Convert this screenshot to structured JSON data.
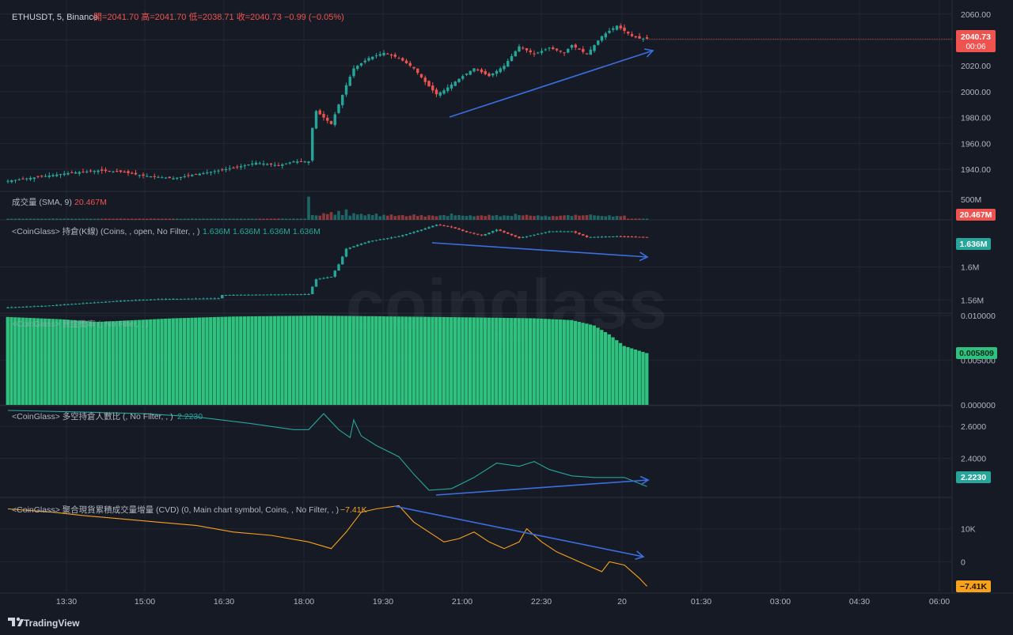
{
  "header": {
    "symbol": "ETHUSDT, 5, Binance",
    "ohlc": "開=2041.70 高=2041.70 低=2038.71 收=2040.73 −0.99 (−0.05%)"
  },
  "price_badge": {
    "price": "2040.73",
    "countdown": "00:06"
  },
  "panes": {
    "volume": {
      "title": "成交量 (SMA, 9)",
      "value": "20.467M",
      "badge": "20.467M",
      "top_tick": "500M"
    },
    "oi": {
      "title": "<CoinGlass> 持倉(K線) (Coins, , open, No Filter, , )",
      "values": "1.636M  1.636M  1.636M  1.636M",
      "badge": "1.636M"
    },
    "funding": {
      "title": "<CoinGlass> 資金費率 (, No Filter, , )",
      "badge": "0.005809"
    },
    "ls_ratio": {
      "title": "<CoinGlass> 多空持倉人數比 (, No Filter, , )",
      "value": "2.2230",
      "badge": "2.2230"
    },
    "cvd": {
      "title": "<CoinGlass> 聚合現貨累積成交量增量 (CVD) (0, Main chart symbol, Coins, , No Filter, , )",
      "value": "−7.41K",
      "badge": "−7.41K"
    }
  },
  "watermark": "coinglass",
  "footer": {
    "brand": "TradingView"
  },
  "colors": {
    "up": "#26a69a",
    "down": "#ef5350",
    "bg": "#161a25",
    "grid": "#232734",
    "funding": "#2ec27e",
    "ls": "#26a69a",
    "cvd": "#f7a21b",
    "arrow": "#3b6fe0"
  },
  "chart_data": [
    {
      "type": "candlestick",
      "title": "ETHUSDT, 5, Binance",
      "y_ticks": [
        "2060.00",
        "2040.00",
        "2020.00",
        "2000.00",
        "1980.00",
        "1960.00",
        "1940.00"
      ],
      "ylim": [
        1929,
        2066
      ],
      "x_ticks": [
        "13:30",
        "15:00",
        "16:30",
        "18:00",
        "19:30",
        "21:00",
        "22:30",
        "20",
        "01:30",
        "03:00",
        "04:30",
        "06:00"
      ],
      "close_path": [
        [
          0,
          1931
        ],
        [
          8,
          1934
        ],
        [
          16,
          1937
        ],
        [
          24,
          1939
        ],
        [
          30,
          1938
        ],
        [
          36,
          1935
        ],
        [
          44,
          1933
        ],
        [
          52,
          1937
        ],
        [
          60,
          1941
        ],
        [
          66,
          1945
        ],
        [
          72,
          1943
        ],
        [
          76,
          1946
        ],
        [
          80,
          1946
        ],
        [
          81,
          1972
        ],
        [
          82,
          1985
        ],
        [
          86,
          1975
        ],
        [
          88,
          1990
        ],
        [
          90,
          2005
        ],
        [
          92,
          2018
        ],
        [
          96,
          2026
        ],
        [
          100,
          2030
        ],
        [
          104,
          2026
        ],
        [
          108,
          2018
        ],
        [
          112,
          2004
        ],
        [
          114,
          1998
        ],
        [
          116,
          2001
        ],
        [
          120,
          2010
        ],
        [
          124,
          2018
        ],
        [
          128,
          2012
        ],
        [
          132,
          2020
        ],
        [
          136,
          2035
        ],
        [
          140,
          2029
        ],
        [
          144,
          2034
        ],
        [
          148,
          2030
        ],
        [
          150,
          2036
        ],
        [
          154,
          2029
        ],
        [
          158,
          2043
        ],
        [
          162,
          2051
        ],
        [
          164,
          2047
        ],
        [
          166,
          2043
        ],
        [
          168,
          2041
        ],
        [
          170,
          2041
        ]
      ],
      "last_price": 2040.73
    },
    {
      "type": "bar",
      "title": "成交量 (SMA, 9)",
      "y_ticks": [
        "500M"
      ],
      "ylim": [
        0,
        900
      ],
      "values": [
        36,
        40,
        38,
        42,
        35,
        38,
        41,
        37,
        40,
        39,
        36,
        38,
        42,
        40,
        37,
        39,
        41,
        38,
        36,
        40,
        38,
        42,
        39,
        37,
        41,
        38,
        40,
        39,
        36,
        40,
        42,
        38,
        37,
        41,
        39,
        40,
        38,
        36,
        42,
        40,
        39,
        37,
        41,
        38,
        40,
        39,
        36,
        40,
        38,
        42,
        39,
        37,
        41,
        38,
        40,
        39,
        38,
        40,
        37,
        41,
        39,
        38,
        40,
        36,
        42,
        39,
        38,
        40,
        37,
        41,
        39,
        38,
        42,
        40,
        39,
        37,
        41,
        38,
        40,
        39,
        780,
        160,
        150,
        140,
        220,
        190,
        260,
        170,
        300,
        160,
        350,
        140,
        220,
        180,
        200,
        150,
        190,
        160,
        210,
        120,
        170,
        140,
        180,
        130,
        150,
        160,
        120,
        140,
        180,
        130,
        160,
        110,
        150,
        140,
        120,
        150,
        160,
        130,
        210,
        150,
        160,
        140,
        130,
        150,
        120,
        140,
        150,
        130,
        170,
        140,
        160,
        120,
        150,
        140,
        130,
        200,
        160,
        150,
        170,
        140,
        130,
        150,
        120,
        140,
        110,
        130,
        120,
        140,
        150,
        160,
        130,
        170,
        140,
        150,
        160,
        180,
        150,
        140,
        130,
        120,
        150,
        110,
        130,
        120,
        140
      ],
      "last": 20.467
    },
    {
      "type": "candlestick",
      "title": "<CoinGlass> 持倉(K線) (Coins, , open, No Filter, , )",
      "y_ticks": [
        "1.636M",
        "1.6M",
        "1.56M"
      ],
      "ylim": [
        1.545,
        1.655
      ],
      "close_path": [
        [
          0,
          1.551
        ],
        [
          10,
          1.553
        ],
        [
          20,
          1.556
        ],
        [
          30,
          1.559
        ],
        [
          40,
          1.561
        ],
        [
          56,
          1.562
        ],
        [
          57,
          1.566
        ],
        [
          80,
          1.567
        ],
        [
          82,
          1.585
        ],
        [
          86,
          1.588
        ],
        [
          88,
          1.603
        ],
        [
          90,
          1.622
        ],
        [
          96,
          1.631
        ],
        [
          104,
          1.637
        ],
        [
          110,
          1.645
        ],
        [
          114,
          1.651
        ],
        [
          118,
          1.648
        ],
        [
          122,
          1.642
        ],
        [
          126,
          1.638
        ],
        [
          130,
          1.645
        ],
        [
          136,
          1.635
        ],
        [
          140,
          1.639
        ],
        [
          144,
          1.643
        ],
        [
          150,
          1.643
        ],
        [
          154,
          1.636
        ],
        [
          162,
          1.637
        ],
        [
          170,
          1.636
        ]
      ],
      "last": 1.636
    },
    {
      "type": "bar",
      "title": "<CoinGlass> 資金費率 (, No Filter, , )",
      "y_ticks": [
        "0.010000",
        "0.005000",
        "0.000000"
      ],
      "ylim": [
        0,
        0.0101
      ],
      "segments": [
        [
          0,
          0.00985
        ],
        [
          14,
          0.0096
        ],
        [
          24,
          0.0093
        ],
        [
          34,
          0.0095
        ],
        [
          44,
          0.0097
        ],
        [
          60,
          0.0099
        ],
        [
          82,
          0.01
        ],
        [
          104,
          0.0099
        ],
        [
          124,
          0.0098
        ],
        [
          140,
          0.0097
        ],
        [
          150,
          0.0095
        ],
        [
          156,
          0.0089
        ],
        [
          160,
          0.0079
        ],
        [
          164,
          0.0066
        ],
        [
          170,
          0.0058
        ]
      ],
      "last": 0.005809
    },
    {
      "type": "line",
      "title": "<CoinGlass> 多空持倉人數比 (, No Filter, , )",
      "y_ticks": [
        "2.6000",
        "2.4000",
        "2.2230"
      ],
      "ylim": [
        2.16,
        2.72
      ],
      "points": [
        [
          0,
          2.7
        ],
        [
          20,
          2.69
        ],
        [
          36,
          2.68
        ],
        [
          50,
          2.66
        ],
        [
          64,
          2.62
        ],
        [
          76,
          2.58
        ],
        [
          80,
          2.58
        ],
        [
          84,
          2.68
        ],
        [
          88,
          2.58
        ],
        [
          91,
          2.53
        ],
        [
          92,
          2.64
        ],
        [
          94,
          2.54
        ],
        [
          98,
          2.48
        ],
        [
          104,
          2.41
        ],
        [
          108,
          2.3
        ],
        [
          112,
          2.2
        ],
        [
          118,
          2.21
        ],
        [
          124,
          2.28
        ],
        [
          130,
          2.37
        ],
        [
          136,
          2.35
        ],
        [
          140,
          2.38
        ],
        [
          144,
          2.33
        ],
        [
          150,
          2.29
        ],
        [
          156,
          2.28
        ],
        [
          164,
          2.28
        ],
        [
          170,
          2.223
        ]
      ],
      "last": 2.223
    },
    {
      "type": "line",
      "title": "<CoinGlass> 聚合現貨累積成交量增量 (CVD)",
      "y_ticks": [
        "10K",
        "0",
        "−7.41K"
      ],
      "ylim": [
        -9,
        19
      ],
      "points": [
        [
          0,
          16
        ],
        [
          12,
          15
        ],
        [
          20,
          14
        ],
        [
          30,
          13
        ],
        [
          40,
          12
        ],
        [
          50,
          11
        ],
        [
          60,
          9
        ],
        [
          70,
          8
        ],
        [
          80,
          6
        ],
        [
          86,
          4
        ],
        [
          90,
          9
        ],
        [
          94,
          15
        ],
        [
          98,
          16
        ],
        [
          104,
          17
        ],
        [
          108,
          12
        ],
        [
          112,
          9
        ],
        [
          116,
          6
        ],
        [
          120,
          7
        ],
        [
          124,
          9
        ],
        [
          128,
          6
        ],
        [
          132,
          4
        ],
        [
          136,
          6
        ],
        [
          138,
          10
        ],
        [
          142,
          6
        ],
        [
          146,
          3
        ],
        [
          150,
          1
        ],
        [
          154,
          -1
        ],
        [
          158,
          -3
        ],
        [
          160,
          0
        ],
        [
          164,
          -1
        ],
        [
          168,
          -5
        ],
        [
          170,
          -7.41
        ]
      ],
      "last": -7.41
    }
  ]
}
